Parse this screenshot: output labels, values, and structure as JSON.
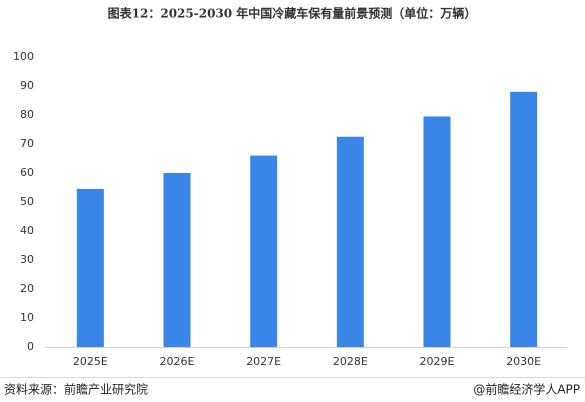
{
  "chart_data": {
    "type": "bar",
    "title": "图表12：2025-2030 年中国冷藏车保有量前景预测（单位：万辆）",
    "categories": [
      "2025E",
      "2026E",
      "2027E",
      "2028E",
      "2029E",
      "2030E"
    ],
    "values": [
      54.5,
      60,
      66,
      72.5,
      79.5,
      88
    ],
    "color": "#3a86e8",
    "ylim": [
      0,
      100
    ],
    "yticks": [
      0,
      10,
      20,
      30,
      40,
      50,
      60,
      70,
      80,
      90,
      100
    ],
    "grid": false,
    "source": "资料来源：前瞻产业研究院",
    "credit": "@前瞻经济学人APP"
  }
}
